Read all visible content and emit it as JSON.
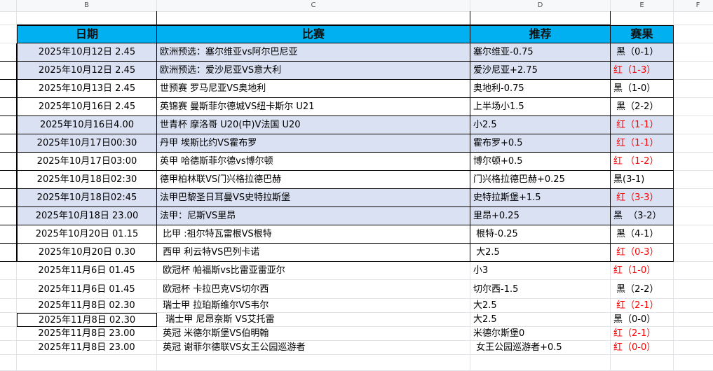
{
  "columns": [
    "B",
    "C",
    "D",
    "E",
    "F"
  ],
  "table": {
    "headers": {
      "date": "日期",
      "match": "比赛",
      "pick": "推荐",
      "result": "赛果"
    },
    "colors": {
      "header_bg": "#00b0f0",
      "shaded_bg": "#d9e1f2",
      "red": "#ff0000",
      "black": "#000000"
    },
    "rows": [
      {
        "date": "2025年10月12日 2.45",
        "match": "欧洲预选：塞尔维亚vs阿尔巴尼亚",
        "pick": "塞尔维亚-0.75",
        "result": " 黑（0-1）",
        "win": false,
        "shaded": true
      },
      {
        "date": "2025年10月12日 2.45",
        "match": "欧洲预选：爱沙尼亚VS意大利",
        "pick": "爱沙尼亚+2.75",
        "result": "红（1-3）",
        "win": true,
        "shaded": true
      },
      {
        "date": "2025年10月13日 2.45",
        "match": "世预赛 罗马尼亚VS奥地利",
        "pick": "奥地利-0.75",
        "result": "黑（1-0）",
        "win": false,
        "shaded": false
      },
      {
        "date": "2025年10月16日 2.45",
        "match": "英锦赛 曼斯菲尔德城VS纽卡斯尔 U21",
        "pick": "上半场小1.5",
        "result": " 黑（2-2）",
        "win": false,
        "shaded": false
      },
      {
        "date": "2025年10月16日4.00",
        "match": "世青杯 摩洛哥 U20(中)V法国 U20",
        "pick": "小2.5",
        "result": " 红（1-1）",
        "win": true,
        "shaded": true
      },
      {
        "date": "2025年10月17日00:30",
        "match": "丹甲 埃斯比约VS霍布罗",
        "pick": "霍布罗+0.5",
        "result": " 红（1-1）",
        "win": true,
        "shaded": true
      },
      {
        "date": "2025年10月17日03:00",
        "match": "英甲 哈德斯菲尔德vs博尔顿",
        "pick": "博尔顿+0.5",
        "result": "红 （1-2）",
        "win": true,
        "shaded": false
      },
      {
        "date": "2025年10月18日02:30",
        "match": "德甲柏林联VS门兴格拉德巴赫",
        "pick": "门兴格拉德巴赫+0.25",
        "result": "黑(3-1)",
        "win": false,
        "shaded": false
      },
      {
        "date": "2025年10月18日02:45",
        "match": "法甲巴黎圣日耳曼VS史特拉斯堡",
        "pick": "史特拉斯堡+1.5",
        "result": " 红（3-3）",
        "win": true,
        "shaded": true
      },
      {
        "date": "2025年10月18日 23.00",
        "match": "法甲：尼斯VS里昂",
        "pick": "里昂+0.25",
        "result": "黑  （3-2）",
        "win": false,
        "shaded": true
      },
      {
        "date": "2025年10月20日 01.15",
        "match": " 比甲 :祖尔特瓦雷根VS根特",
        "pick": " 根特-0.25",
        "result": " 黑（4-1）",
        "win": false,
        "shaded": false
      },
      {
        "date": "2025年10月20日 0.30",
        "match": " 西甲 利云特VS巴列卡诺",
        "pick": " 大2.5",
        "result": " 红（0-3）",
        "win": true,
        "shaded": false
      },
      {
        "date": "2025年11月6日 01.45",
        "match": " 欧冠杯 帕福斯vs比雷亚雷亚尔",
        "pick": "小3",
        "result": "红（1-0）",
        "win": true,
        "shaded": false
      },
      {
        "date": "2025年11月6日 01.45",
        "match": " 欧冠杯 卡拉巴克VS切尔西",
        "pick": "切尔西-1.5",
        "result": " 黑（2-2）",
        "win": false,
        "shaded": false
      },
      {
        "date": "2025年11月8日 02.30",
        "match": " 瑞士甲 拉珀斯维尔VS韦尔",
        "pick": "大2.5",
        "result": " 红（2-1）",
        "win": true,
        "shaded": false
      },
      {
        "date": "2025年11月8日 02.30",
        "match": "  瑞士甲 尼昂奈斯 VS艾托雷",
        "pick": "大2.5",
        "result": "黑（0-0）",
        "win": false,
        "shaded": false
      },
      {
        "date": "2025年11月8日 23.00",
        "match": " 英冠 米德尔斯堡VS伯明翰",
        "pick": "米德尔斯堡0",
        "result": "红（2-1）",
        "win": true,
        "shaded": false
      },
      {
        "date": "2025年11月8日 23.00",
        "match": " 英冠 谢菲尔德联VS女王公园巡游者",
        "pick": " 女王公园巡游者+0.5",
        "result": "红（0-0）",
        "win": true,
        "shaded": false
      }
    ]
  }
}
